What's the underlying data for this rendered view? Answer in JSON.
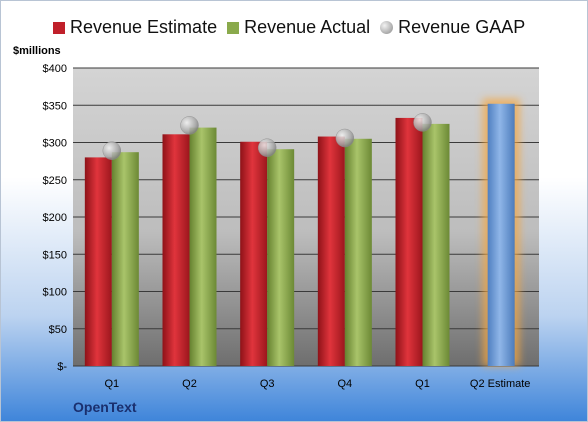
{
  "legend": {
    "estimate": "Revenue Estimate",
    "actual": "Revenue Actual",
    "gaap": "Revenue GAAP"
  },
  "unit_label": "$millions",
  "company": "OpenText",
  "colors": {
    "estimate": "#c0202a",
    "actual": "#8aaa4c",
    "gaap": "#b4b4b4",
    "forecast": "#6b9bd8",
    "forecast_glow": "#f5a742"
  },
  "chart_data": {
    "type": "bar",
    "categories": [
      "Q1",
      "Q2",
      "Q3",
      "Q4",
      "Q1",
      "Q2 Estimate"
    ],
    "ylim": [
      0,
      400
    ],
    "yticks": [
      0,
      50,
      100,
      150,
      200,
      250,
      300,
      350,
      400
    ],
    "ytick_labels": [
      "$-",
      "$50",
      "$100",
      "$150",
      "$200",
      "$250",
      "$300",
      "$350",
      "$400"
    ],
    "ylabel": "$millions",
    "grid": true,
    "legend_position": "top",
    "series": [
      {
        "name": "Revenue Estimate",
        "values": [
          280,
          311,
          301,
          308,
          333,
          null
        ]
      },
      {
        "name": "Revenue Actual",
        "values": [
          287,
          320,
          291,
          305,
          325,
          352
        ]
      },
      {
        "name": "Revenue GAAP",
        "type": "scatter",
        "values": [
          289,
          323,
          293,
          306,
          327,
          null
        ]
      }
    ]
  }
}
